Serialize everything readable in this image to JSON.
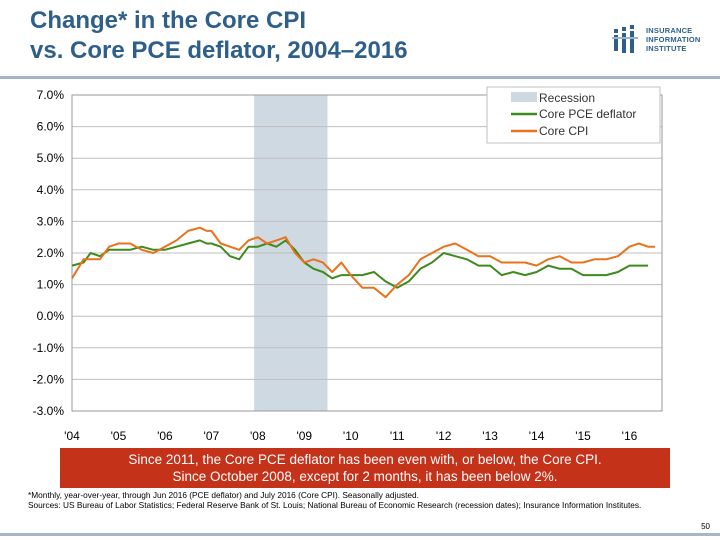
{
  "header": {
    "title_line1": "Change* in the Core CPI",
    "title_line2": "vs. Core PCE deflator, 2004–2016"
  },
  "logo": {
    "line1": "INSURANCE",
    "line2": "INFORMATION",
    "line3": "INSTITUTE",
    "icon": "iii-logo-icon",
    "color": "#2e5f8a"
  },
  "callout": {
    "line1": "Since 2011, the Core PCE deflator has been even with, or below, the Core CPI.",
    "line2": "Since October 2008, except for 2 months, it has been below 2%.",
    "color": "#c5321a"
  },
  "notes": {
    "footnote": "*Monthly, year-over-year, through Jun 2016 (PCE deflator) and July 2016 (Core CPI). Seasonally adjusted.",
    "sources": "Sources: US Bureau of Labor Statistics; Federal Reserve Bank of St. Louis; National Bureau of Economic Research (recession dates); Insurance Information Institutes."
  },
  "page_number": "50",
  "chart_data": {
    "type": "line",
    "title": "",
    "xlabel": "",
    "ylabel": "",
    "ylim": [
      -3.0,
      7.0
    ],
    "xlim": [
      2004.0,
      2016.7
    ],
    "grid": true,
    "legend_position": "top-right",
    "y_ticks": [
      7.0,
      6.0,
      5.0,
      4.0,
      3.0,
      2.0,
      1.0,
      0.0,
      -1.0,
      -2.0,
      -3.0
    ],
    "y_tick_labels": [
      "7.0%",
      "6.0%",
      "5.0%",
      "4.0%",
      "3.0%",
      "2.0%",
      "1.0%",
      "0.0%",
      "-1.0%",
      "-2.0%",
      "-3.0%"
    ],
    "x_ticks": [
      2004,
      2005,
      2006,
      2007,
      2008,
      2009,
      2010,
      2011,
      2012,
      2013,
      2014,
      2015,
      2016
    ],
    "x_tick_labels": [
      "'04",
      "'05",
      "'06",
      "'07",
      "'08",
      "'09",
      "'10",
      "'11",
      "'12",
      "'13",
      "'14",
      "'15",
      "'16"
    ],
    "recession": {
      "name": "Recession",
      "start": 2007.92,
      "end": 2009.5,
      "color": "#cfd9e2"
    },
    "series": [
      {
        "name": "Core PCE deflator",
        "color": "#3d8a1e",
        "x": [
          2004.0,
          2004.25,
          2004.4,
          2004.6,
          2004.8,
          2005.0,
          2005.25,
          2005.5,
          2005.75,
          2006.0,
          2006.25,
          2006.5,
          2006.75,
          2006.9,
          2007.0,
          2007.2,
          2007.4,
          2007.6,
          2007.8,
          2008.0,
          2008.2,
          2008.4,
          2008.6,
          2008.8,
          2009.0,
          2009.2,
          2009.4,
          2009.6,
          2009.8,
          2010.0,
          2010.25,
          2010.5,
          2010.75,
          2011.0,
          2011.25,
          2011.5,
          2011.75,
          2012.0,
          2012.25,
          2012.5,
          2012.75,
          2013.0,
          2013.25,
          2013.5,
          2013.75,
          2014.0,
          2014.25,
          2014.5,
          2014.75,
          2015.0,
          2015.25,
          2015.5,
          2015.75,
          2016.0,
          2016.2,
          2016.4
        ],
        "values": [
          1.6,
          1.7,
          2.0,
          1.9,
          2.1,
          2.1,
          2.1,
          2.2,
          2.1,
          2.1,
          2.2,
          2.3,
          2.4,
          2.3,
          2.3,
          2.2,
          1.9,
          1.8,
          2.2,
          2.2,
          2.3,
          2.2,
          2.4,
          2.1,
          1.7,
          1.5,
          1.4,
          1.2,
          1.3,
          1.3,
          1.3,
          1.4,
          1.1,
          0.9,
          1.1,
          1.5,
          1.7,
          2.0,
          1.9,
          1.8,
          1.6,
          1.6,
          1.3,
          1.4,
          1.3,
          1.4,
          1.6,
          1.5,
          1.5,
          1.3,
          1.3,
          1.3,
          1.4,
          1.6,
          1.6,
          1.6
        ]
      },
      {
        "name": "Core CPI",
        "color": "#e8731c",
        "x": [
          2004.0,
          2004.25,
          2004.4,
          2004.6,
          2004.8,
          2005.0,
          2005.25,
          2005.5,
          2005.75,
          2006.0,
          2006.25,
          2006.5,
          2006.75,
          2006.9,
          2007.0,
          2007.2,
          2007.4,
          2007.6,
          2007.8,
          2008.0,
          2008.2,
          2008.4,
          2008.6,
          2008.8,
          2009.0,
          2009.2,
          2009.4,
          2009.6,
          2009.8,
          2010.0,
          2010.25,
          2010.5,
          2010.75,
          2011.0,
          2011.25,
          2011.5,
          2011.75,
          2012.0,
          2012.25,
          2012.5,
          2012.75,
          2013.0,
          2013.25,
          2013.5,
          2013.75,
          2014.0,
          2014.25,
          2014.5,
          2014.75,
          2015.0,
          2015.25,
          2015.5,
          2015.75,
          2016.0,
          2016.2,
          2016.4,
          2016.55
        ],
        "values": [
          1.2,
          1.8,
          1.8,
          1.8,
          2.2,
          2.3,
          2.3,
          2.1,
          2.0,
          2.2,
          2.4,
          2.7,
          2.8,
          2.7,
          2.7,
          2.3,
          2.2,
          2.1,
          2.4,
          2.5,
          2.3,
          2.4,
          2.5,
          2.0,
          1.7,
          1.8,
          1.7,
          1.4,
          1.7,
          1.3,
          0.9,
          0.9,
          0.6,
          1.0,
          1.3,
          1.8,
          2.0,
          2.2,
          2.3,
          2.1,
          1.9,
          1.9,
          1.7,
          1.7,
          1.7,
          1.6,
          1.8,
          1.9,
          1.7,
          1.7,
          1.8,
          1.8,
          1.9,
          2.2,
          2.3,
          2.2,
          2.2
        ]
      }
    ]
  }
}
